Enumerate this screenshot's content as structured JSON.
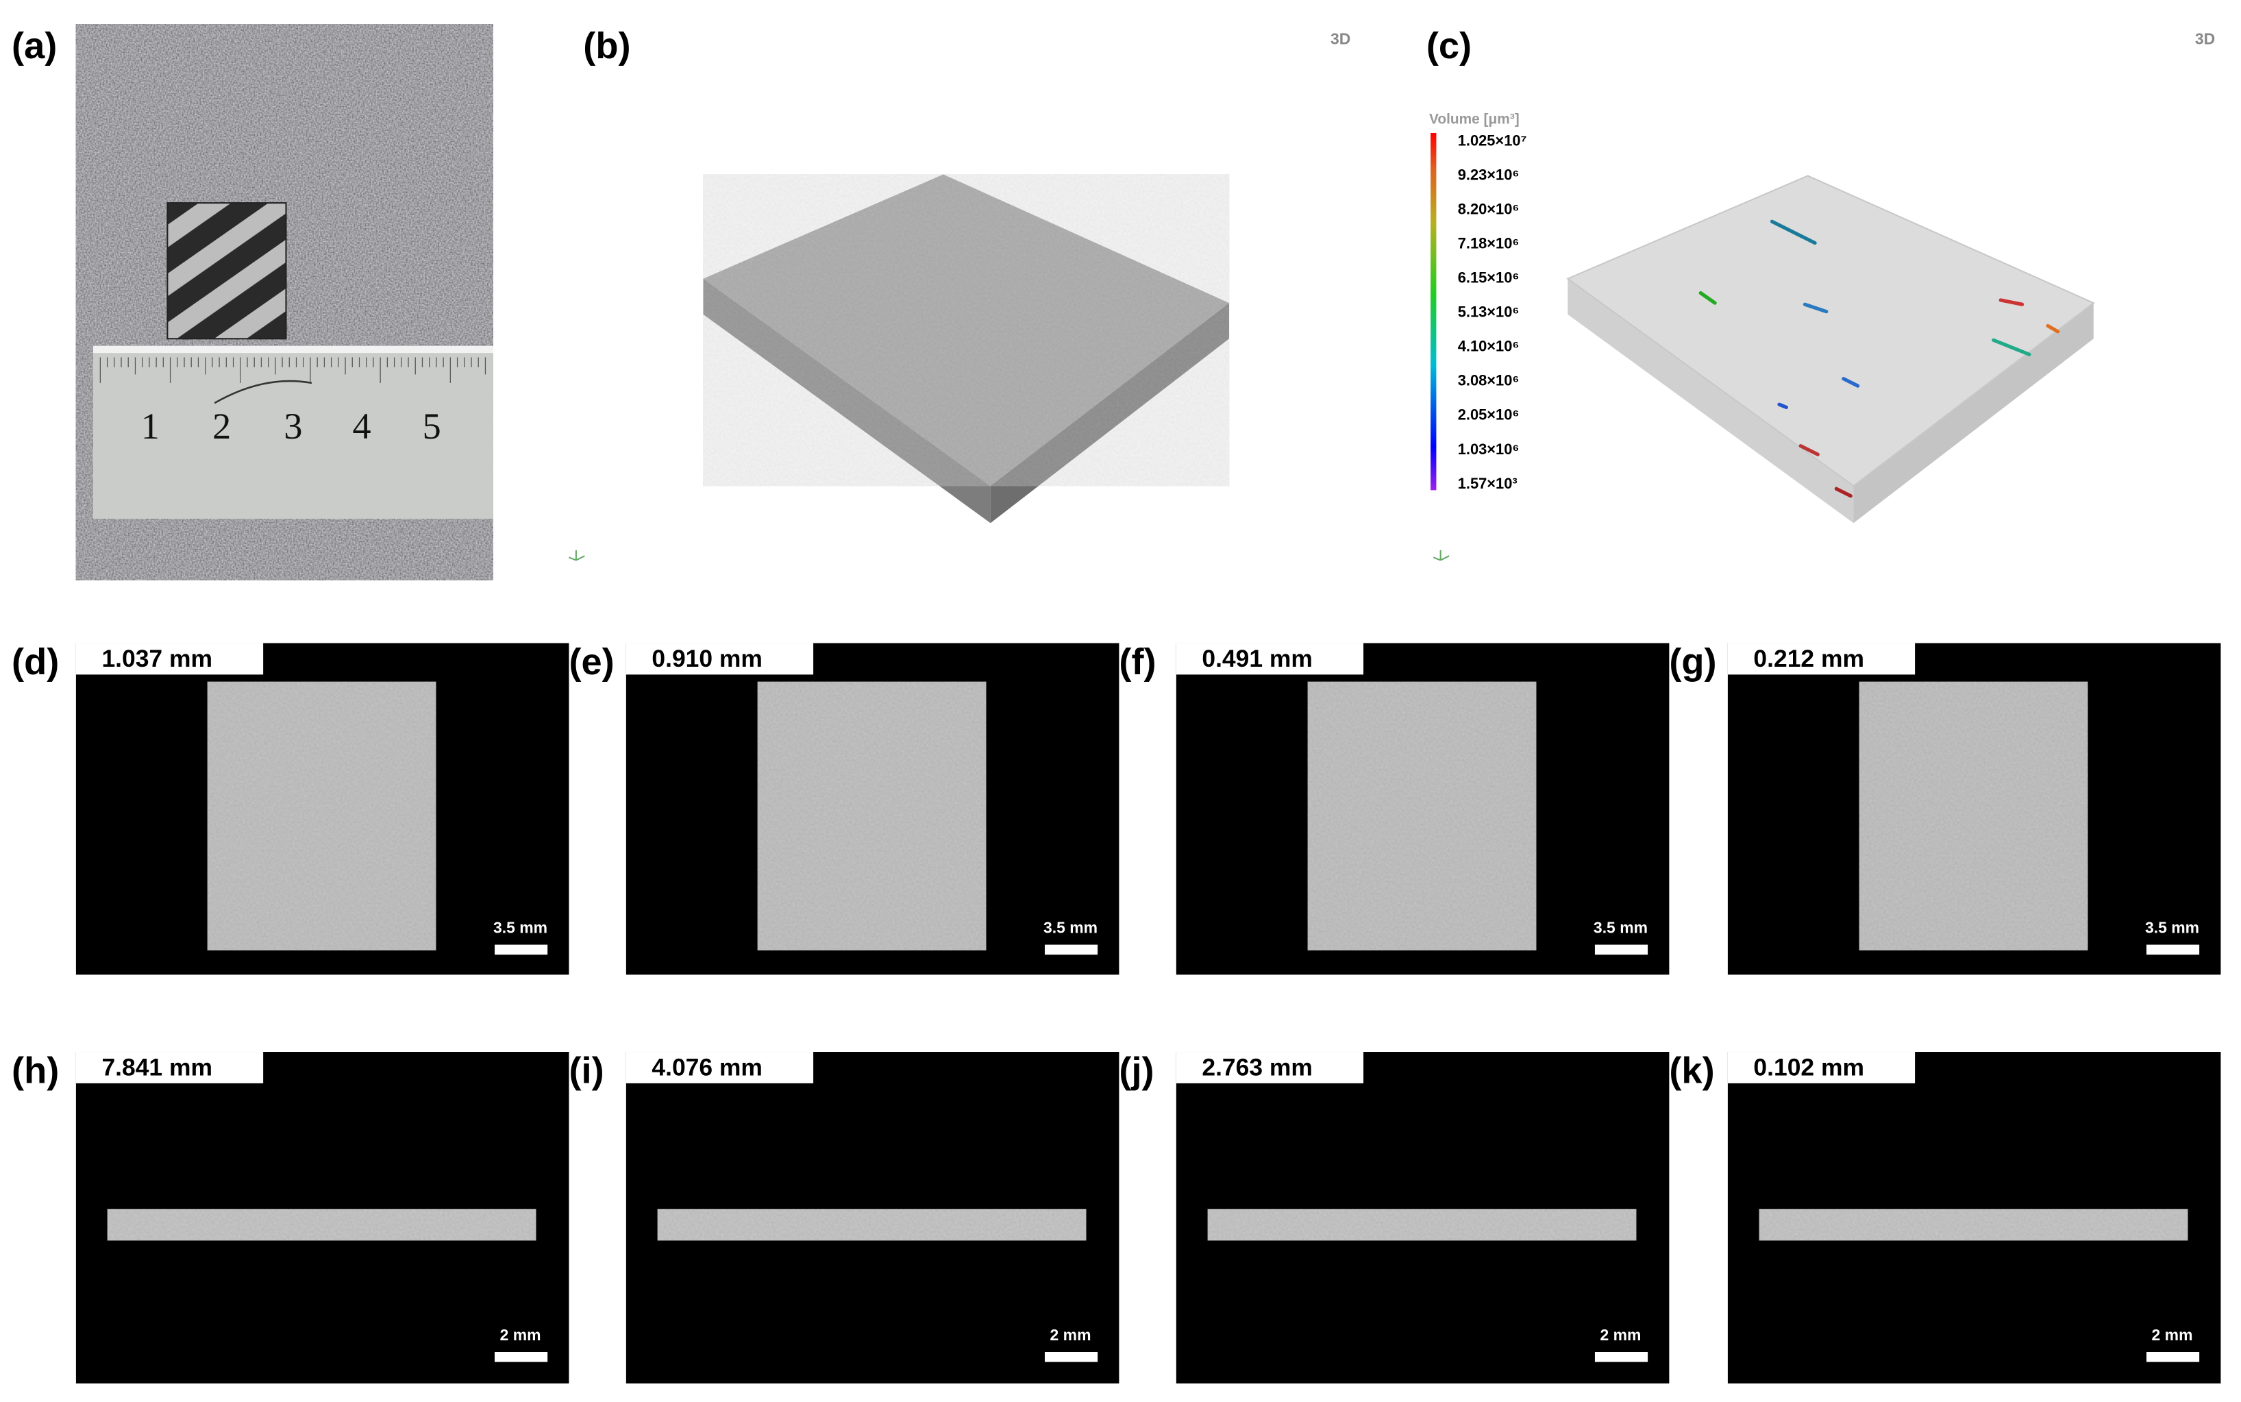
{
  "panels": [
    {
      "label": "(a)",
      "ruler_numbers": [
        "1",
        "2",
        "3",
        "4",
        "5"
      ]
    },
    {
      "label": "(b)",
      "view": "3D"
    },
    {
      "label": "(c)",
      "view": "3D",
      "colorbar": {
        "title": "Volume [μm³]",
        "labels": [
          "1.025×10⁷",
          "9.23×10⁶",
          "8.20×10⁶",
          "7.18×10⁶",
          "6.15×10⁶",
          "5.13×10⁶",
          "4.10×10⁶",
          "3.08×10⁶",
          "2.05×10⁶",
          "1.03×10⁶",
          "1.57×10³"
        ]
      }
    }
  ],
  "slices": [
    {
      "label": "(d)",
      "depth": "1.037 mm",
      "scale_bar": "3.5 mm"
    },
    {
      "label": "(e)",
      "depth": "0.910 mm",
      "scale_bar": "3.5 mm"
    },
    {
      "label": "(f)",
      "depth": "0.491 mm",
      "scale_bar": "3.5 mm"
    },
    {
      "label": "(g)",
      "depth": "0.212 mm",
      "scale_bar": "3.5 mm"
    },
    {
      "label": "(h)",
      "depth": "7.841 mm",
      "scale_bar": "2 mm"
    },
    {
      "label": "(i)",
      "depth": "4.076 mm",
      "scale_bar": "2 mm"
    },
    {
      "label": "(j)",
      "depth": "2.763 mm",
      "scale_bar": "2 mm"
    },
    {
      "label": "(k)",
      "depth": "0.102 mm",
      "scale_bar": "2 mm"
    }
  ]
}
